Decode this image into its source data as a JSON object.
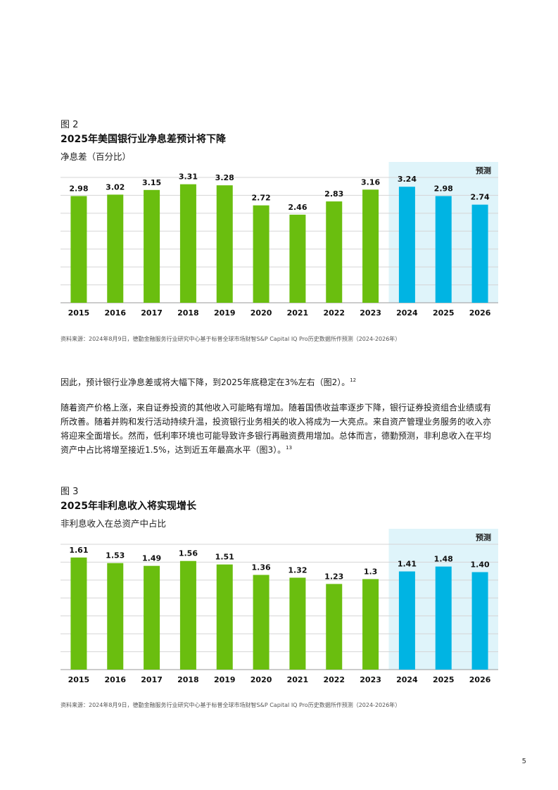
{
  "figure2": {
    "label": "图 2",
    "title": "2025年美国银行业净息差预计将下降",
    "subtitle": "净息差（百分比）",
    "source": "资料来源：2024年8月9日，德勤金融服务行业研究中心基于标普全球市场财智S&P Capital IQ Pro历史数据所作预测（2024-2026年）"
  },
  "figure3": {
    "label": "图 3",
    "title": "2025年非利息收入将实现增长",
    "subtitle": "非利息收入在总资产中占比",
    "source": "资料来源：2024年8月9日，德勤金融服务行业研究中心基于标普全球市场财智S&P Capital IQ Pro历史数据所作预测（2024-2026年）"
  },
  "body": {
    "para1_text": "因此，预计银行业净息差或将大幅下降，到2025年底稳定在3%左右（图2）。",
    "para1_note": "12",
    "para2_text": "随着资产价格上涨，来自证券投资的其他收入可能略有增加。随着国债收益率逐步下降，银行证券投资组合业绩或有所改善。随着并购和发行活动持续升温，投资银行业务相关的收入将成为一大亮点。来自资产管理业务服务的收入亦将迎来全面增长。然而，低利率环境也可能导致许多银行再融资费用增加。总体而言，德勤预测，非利息收入在平均资产中占比将增至接近1.5%，达到近五年最高水平（图3）。",
    "para2_note": "13"
  },
  "page_number": "5",
  "colors": {
    "actual": "#6ABE0F",
    "forecast": "#00B4E3",
    "forecast_bg": "#DFF4FA",
    "grid": "#D5D5D5"
  },
  "chart_data": [
    {
      "type": "bar",
      "categories": [
        "2015",
        "2016",
        "2017",
        "2018",
        "2019",
        "2020",
        "2021",
        "2022",
        "2023",
        "2024",
        "2025",
        "2026"
      ],
      "values": [
        2.98,
        3.02,
        3.15,
        3.31,
        3.28,
        2.72,
        2.46,
        2.83,
        3.16,
        3.24,
        2.98,
        2.74
      ],
      "value_labels": [
        "2.98",
        "3.02",
        "3.15",
        "3.31",
        "3.28",
        "2.72",
        "2.46",
        "2.83",
        "3.16",
        "3.24",
        "2.98",
        "2.74"
      ],
      "forecast_start": "2024",
      "forecast_label": "预测",
      "title": "2025年美国银行业净息差预计将下降",
      "ylabel": "",
      "ylim": [
        0,
        3.5
      ],
      "grid": true
    },
    {
      "type": "bar",
      "categories": [
        "2015",
        "2016",
        "2017",
        "2018",
        "2019",
        "2020",
        "2021",
        "2022",
        "2023",
        "2024",
        "2025",
        "2026"
      ],
      "values": [
        1.61,
        1.53,
        1.49,
        1.56,
        1.51,
        1.36,
        1.32,
        1.23,
        1.3,
        1.41,
        1.48,
        1.4
      ],
      "value_labels": [
        "1.61",
        "1.53",
        "1.49",
        "1.56",
        "1.51",
        "1.36",
        "1.32",
        "1.23",
        "1.3",
        "1.41",
        "1.48",
        "1.40"
      ],
      "forecast_start": "2024",
      "forecast_label": "预测",
      "title": "2025年非利息收入将实现增长",
      "ylabel": "",
      "ylim": [
        0,
        1.8
      ],
      "grid": true
    }
  ]
}
